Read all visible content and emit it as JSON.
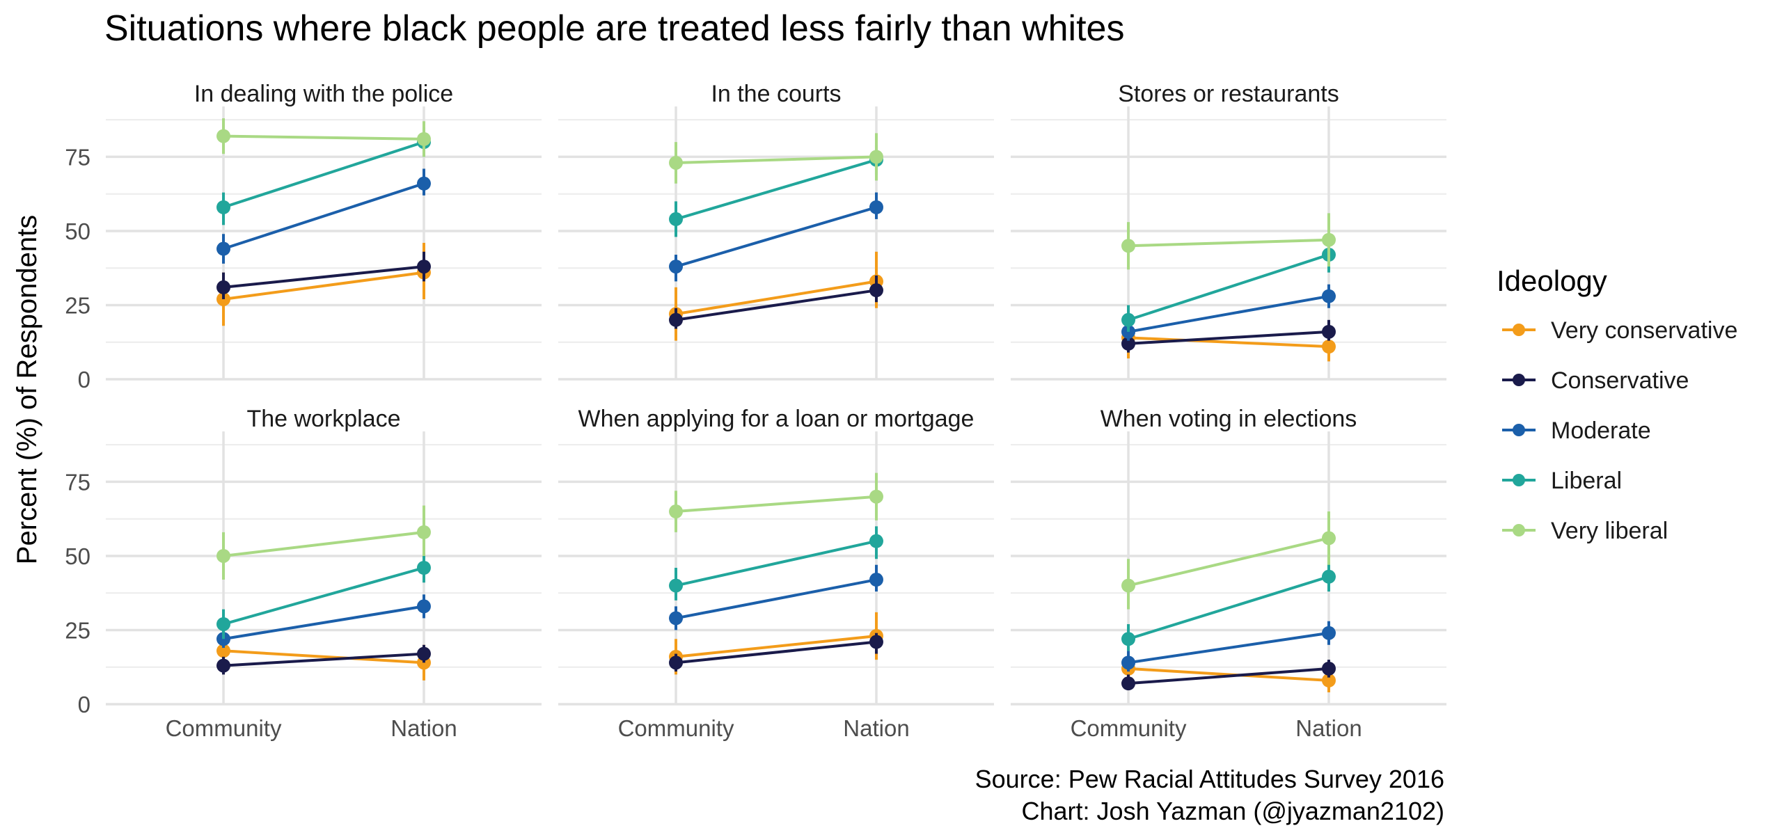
{
  "chart_data": {
    "type": "line",
    "title": "Situations where black people are treated less fairly than whites",
    "ylabel": "Percent (%) of Respondents",
    "xlabel": "",
    "categories": [
      "Community",
      "Nation"
    ],
    "ylim": [
      0,
      92
    ],
    "yticks": [
      0,
      25,
      50,
      75
    ],
    "grid": true,
    "error_bars": true,
    "legend": {
      "title": "Ideology",
      "position": "right",
      "entries": [
        {
          "name": "Very conservative",
          "color": "#F39C1A"
        },
        {
          "name": "Conservative",
          "color": "#1A1B4B"
        },
        {
          "name": "Moderate",
          "color": "#1B5FAA"
        },
        {
          "name": "Liberal",
          "color": "#21A69B"
        },
        {
          "name": "Very liberal",
          "color": "#A9D984"
        }
      ]
    },
    "panels": [
      {
        "title": "In dealing with the police",
        "series": [
          {
            "name": "Very conservative",
            "values": [
              27,
              36
            ],
            "low": [
              18,
              27
            ],
            "high": [
              36,
              46
            ]
          },
          {
            "name": "Conservative",
            "values": [
              31,
              38
            ],
            "low": [
              27,
              33
            ],
            "high": [
              36,
              43
            ]
          },
          {
            "name": "Moderate",
            "values": [
              44,
              66
            ],
            "low": [
              39,
              62
            ],
            "high": [
              49,
              71
            ]
          },
          {
            "name": "Liberal",
            "values": [
              58,
              80
            ],
            "low": [
              52,
              75
            ],
            "high": [
              63,
              85
            ]
          },
          {
            "name": "Very liberal",
            "values": [
              82,
              81
            ],
            "low": [
              76,
              75
            ],
            "high": [
              88,
              87
            ]
          }
        ]
      },
      {
        "title": "In the courts",
        "series": [
          {
            "name": "Very conservative",
            "values": [
              22,
              33
            ],
            "low": [
              13,
              24
            ],
            "high": [
              31,
              43
            ]
          },
          {
            "name": "Conservative",
            "values": [
              20,
              30
            ],
            "low": [
              17,
              26
            ],
            "high": [
              24,
              35
            ]
          },
          {
            "name": "Moderate",
            "values": [
              38,
              58
            ],
            "low": [
              33,
              54
            ],
            "high": [
              42,
              63
            ]
          },
          {
            "name": "Liberal",
            "values": [
              54,
              74
            ],
            "low": [
              48,
              69
            ],
            "high": [
              60,
              79
            ]
          },
          {
            "name": "Very liberal",
            "values": [
              73,
              75
            ],
            "low": [
              66,
              67
            ],
            "high": [
              80,
              83
            ]
          }
        ]
      },
      {
        "title": "Stores or restaurants",
        "series": [
          {
            "name": "Very conservative",
            "values": [
              14,
              11
            ],
            "low": [
              7,
              6
            ],
            "high": [
              21,
              16
            ]
          },
          {
            "name": "Conservative",
            "values": [
              12,
              16
            ],
            "low": [
              9,
              13
            ],
            "high": [
              15,
              20
            ]
          },
          {
            "name": "Moderate",
            "values": [
              16,
              28
            ],
            "low": [
              13,
              24
            ],
            "high": [
              19,
              32
            ]
          },
          {
            "name": "Liberal",
            "values": [
              20,
              42
            ],
            "low": [
              16,
              36
            ],
            "high": [
              25,
              47
            ]
          },
          {
            "name": "Very liberal",
            "values": [
              45,
              47
            ],
            "low": [
              37,
              38
            ],
            "high": [
              53,
              56
            ]
          }
        ]
      },
      {
        "title": "The workplace",
        "series": [
          {
            "name": "Very conservative",
            "values": [
              18,
              14
            ],
            "low": [
              12,
              8
            ],
            "high": [
              24,
              20
            ]
          },
          {
            "name": "Conservative",
            "values": [
              13,
              17
            ],
            "low": [
              10,
              14
            ],
            "high": [
              16,
              20
            ]
          },
          {
            "name": "Moderate",
            "values": [
              22,
              33
            ],
            "low": [
              19,
              29
            ],
            "high": [
              26,
              37
            ]
          },
          {
            "name": "Liberal",
            "values": [
              27,
              46
            ],
            "low": [
              22,
              41
            ],
            "high": [
              32,
              51
            ]
          },
          {
            "name": "Very liberal",
            "values": [
              50,
              58
            ],
            "low": [
              42,
              50
            ],
            "high": [
              58,
              67
            ]
          }
        ]
      },
      {
        "title": "When applying for a loan or mortgage",
        "series": [
          {
            "name": "Very conservative",
            "values": [
              16,
              23
            ],
            "low": [
              10,
              15
            ],
            "high": [
              22,
              31
            ]
          },
          {
            "name": "Conservative",
            "values": [
              14,
              21
            ],
            "low": [
              11,
              17
            ],
            "high": [
              17,
              24
            ]
          },
          {
            "name": "Moderate",
            "values": [
              29,
              42
            ],
            "low": [
              25,
              38
            ],
            "high": [
              33,
              47
            ]
          },
          {
            "name": "Liberal",
            "values": [
              40,
              55
            ],
            "low": [
              35,
              49
            ],
            "high": [
              46,
              60
            ]
          },
          {
            "name": "Very liberal",
            "values": [
              65,
              70
            ],
            "low": [
              58,
              62
            ],
            "high": [
              72,
              78
            ]
          }
        ]
      },
      {
        "title": "When voting in elections",
        "series": [
          {
            "name": "Very conservative",
            "values": [
              12,
              8
            ],
            "low": [
              7,
              4
            ],
            "high": [
              17,
              12
            ]
          },
          {
            "name": "Conservative",
            "values": [
              7,
              12
            ],
            "low": [
              5,
              9
            ],
            "high": [
              10,
              15
            ]
          },
          {
            "name": "Moderate",
            "values": [
              14,
              24
            ],
            "low": [
              11,
              20
            ],
            "high": [
              18,
              28
            ]
          },
          {
            "name": "Liberal",
            "values": [
              22,
              43
            ],
            "low": [
              18,
              38
            ],
            "high": [
              27,
              48
            ]
          },
          {
            "name": "Very liberal",
            "values": [
              40,
              56
            ],
            "low": [
              32,
              47
            ],
            "high": [
              49,
              65
            ]
          }
        ]
      }
    ]
  },
  "caption": {
    "line1": "Source: Pew Racial Attitudes Survey 2016",
    "line2": "Chart: Josh Yazman (@jyazman2102)"
  }
}
